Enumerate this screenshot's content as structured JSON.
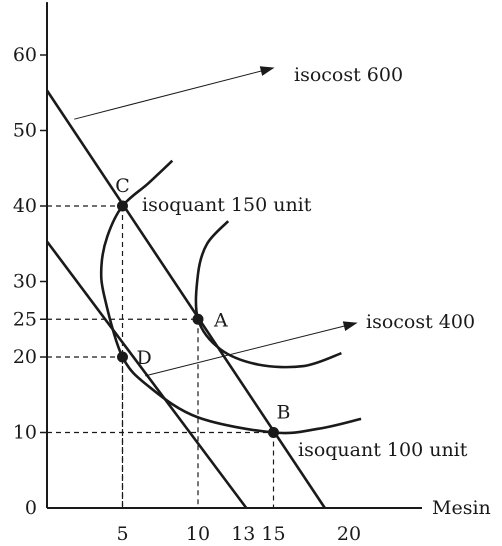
{
  "chart_data": {
    "type": "line",
    "title": "",
    "xlabel": "Mesin",
    "ylabel": "",
    "xlim": [
      0,
      23
    ],
    "ylim": [
      0,
      67
    ],
    "x_ticks": [
      5,
      10,
      13,
      15,
      20
    ],
    "y_ticks": [
      0,
      10,
      20,
      25,
      30,
      40,
      50,
      60
    ],
    "series": [
      {
        "id": "isocost-600",
        "kind": "isocost",
        "points": [
          [
            0,
            55.3
          ],
          [
            18.4,
            0
          ]
        ]
      },
      {
        "id": "isocost-400",
        "kind": "isocost",
        "points": [
          [
            0,
            35.3
          ],
          [
            13.2,
            0
          ]
        ]
      },
      {
        "id": "isoquant-150",
        "kind": "isoquant",
        "points": [
          [
            8.3,
            46
          ],
          [
            6.7,
            43
          ],
          [
            5,
            40
          ],
          [
            4,
            36
          ],
          [
            3.6,
            32
          ],
          [
            3.8,
            28
          ],
          [
            5,
            20
          ],
          [
            6.8,
            16
          ],
          [
            10,
            12
          ],
          [
            15,
            10
          ],
          [
            18,
            10.5
          ],
          [
            20.8,
            11.8
          ]
        ]
      },
      {
        "id": "isoquant-100",
        "kind": "isoquant",
        "points": [
          [
            12,
            38
          ],
          [
            10.6,
            35
          ],
          [
            10,
            31
          ],
          [
            10,
            25
          ],
          [
            11.5,
            21
          ],
          [
            14,
            19
          ],
          [
            17,
            18.8
          ],
          [
            19.5,
            20.5
          ]
        ]
      }
    ],
    "points": [
      {
        "label": "C",
        "x": 5,
        "y": 40
      },
      {
        "label": "A",
        "x": 10,
        "y": 25
      },
      {
        "label": "D",
        "x": 5,
        "y": 20
      },
      {
        "label": "B",
        "x": 15,
        "y": 10
      }
    ],
    "annotations": [
      {
        "id": "isocost-600-label",
        "text": "isocost 600",
        "arrow_from": [
          1.8,
          51.5
        ],
        "arrow_to": [
          15,
          58.3
        ]
      },
      {
        "id": "isocost-400-label",
        "text": "isocost 400",
        "arrow_from": [
          6.5,
          17.5
        ],
        "arrow_to": [
          20.5,
          24.5
        ]
      },
      {
        "id": "isoquant-150-label",
        "text": "isoquant 150 unit"
      },
      {
        "id": "isoquant-100-label",
        "text": "isoquant 100 unit"
      }
    ],
    "grid": false
  }
}
